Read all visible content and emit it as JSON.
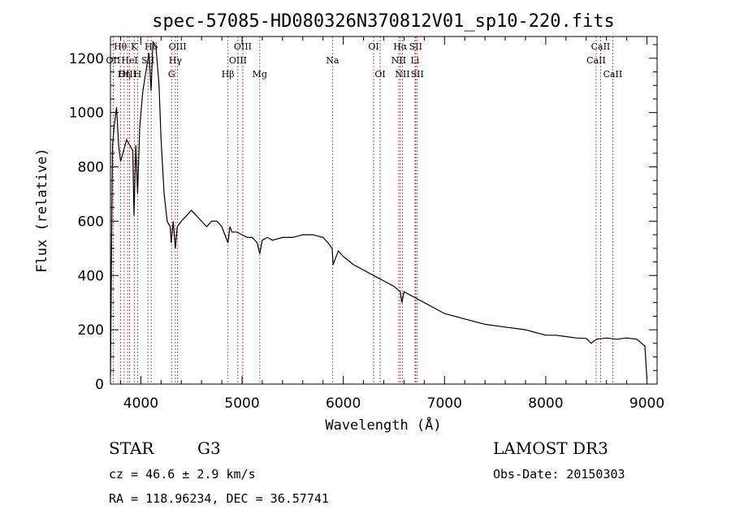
{
  "chart_data": {
    "type": "line",
    "title": "spec-57085-HD080326N370812V01_sp10-220.fits",
    "xlabel": "Wavelength (Å)",
    "ylabel": "Flux (relative)",
    "xlim": [
      3700,
      9100
    ],
    "ylim": [
      0,
      1280
    ],
    "xticks": [
      4000,
      5000,
      6000,
      7000,
      8000,
      9000
    ],
    "yticks": [
      0,
      200,
      400,
      600,
      800,
      1000,
      1200
    ],
    "series": [
      {
        "name": "spectrum",
        "x": [
          3700,
          3720,
          3740,
          3760,
          3780,
          3800,
          3830,
          3860,
          3890,
          3920,
          3933,
          3950,
          3968,
          3990,
          4020,
          4050,
          4080,
          4101,
          4120,
          4150,
          4180,
          4200,
          4230,
          4260,
          4290,
          4300,
          4320,
          4340,
          4360,
          4400,
          4450,
          4500,
          4550,
          4600,
          4650,
          4700,
          4750,
          4800,
          4861,
          4880,
          4900,
          4950,
          5000,
          5050,
          5100,
          5150,
          5175,
          5200,
          5250,
          5300,
          5400,
          5500,
          5600,
          5700,
          5800,
          5850,
          5890,
          5900,
          5950,
          6000,
          6100,
          6200,
          6300,
          6400,
          6500,
          6563,
          6580,
          6600,
          6700,
          6800,
          6900,
          7000,
          7200,
          7400,
          7600,
          7800,
          7900,
          8000,
          8100,
          8200,
          8300,
          8400,
          8450,
          8500,
          8600,
          8700,
          8800,
          8900,
          8980,
          9000
        ],
        "y": [
          30,
          880,
          960,
          1020,
          880,
          820,
          860,
          900,
          880,
          860,
          620,
          880,
          700,
          950,
          1080,
          1150,
          1220,
          1080,
          1260,
          1240,
          1100,
          900,
          700,
          600,
          580,
          520,
          600,
          500,
          580,
          600,
          620,
          640,
          620,
          600,
          580,
          600,
          600,
          580,
          520,
          580,
          560,
          560,
          550,
          540,
          540,
          520,
          480,
          530,
          540,
          530,
          540,
          540,
          550,
          550,
          540,
          520,
          500,
          440,
          490,
          470,
          440,
          420,
          400,
          380,
          360,
          340,
          300,
          340,
          320,
          300,
          280,
          260,
          240,
          220,
          210,
          200,
          190,
          180,
          180,
          175,
          170,
          168,
          150,
          165,
          170,
          165,
          170,
          165,
          140,
          20
        ]
      }
    ],
    "line_markers": [
      {
        "label": "Hθ",
        "x": 3798,
        "row": 1
      },
      {
        "label": "OII",
        "x": 3727,
        "row": 2
      },
      {
        "label": "OIII",
        "x": 3869,
        "row": 3
      },
      {
        "label": "Hη",
        "x": 3835,
        "row": 3
      },
      {
        "label": "HeI",
        "x": 3889,
        "row": 2
      },
      {
        "label": "K",
        "x": 3934,
        "row": 1
      },
      {
        "label": "SII",
        "x": 4070,
        "row": 2
      },
      {
        "label": "H",
        "x": 3968,
        "row": 3
      },
      {
        "label": "Hδ",
        "x": 4102,
        "row": 1
      },
      {
        "label": "OIII",
        "x": 4363,
        "row": 1
      },
      {
        "label": "Hγ",
        "x": 4341,
        "row": 2
      },
      {
        "label": "G",
        "x": 4304,
        "row": 3
      },
      {
        "label": "OIII",
        "x": 5007,
        "row": 1
      },
      {
        "label": "OIII",
        "x": 4959,
        "row": 2
      },
      {
        "label": "Hβ",
        "x": 4861,
        "row": 3
      },
      {
        "label": "Mg",
        "x": 5175,
        "row": 3
      },
      {
        "label": "Na",
        "x": 5893,
        "row": 2
      },
      {
        "label": "OI",
        "x": 6300,
        "row": 1
      },
      {
        "label": "OI",
        "x": 6364,
        "row": 3
      },
      {
        "label": "Hα",
        "x": 6563,
        "row": 1
      },
      {
        "label": "SII",
        "x": 6716,
        "row": 1
      },
      {
        "label": "NII",
        "x": 6548,
        "row": 2
      },
      {
        "label": "Li",
        "x": 6708,
        "row": 2
      },
      {
        "label": "NII",
        "x": 6584,
        "row": 3
      },
      {
        "label": "SII",
        "x": 6731,
        "row": 3
      },
      {
        "label": "CaII",
        "x": 8542,
        "row": 1
      },
      {
        "label": "CaII",
        "x": 8498,
        "row": 2
      },
      {
        "label": "CaII",
        "x": 8662,
        "row": 3
      }
    ]
  },
  "info": {
    "object_type": "STAR",
    "subclass": "G3",
    "survey": "LAMOST DR3",
    "redshift": "cz = 46.6 ± 2.9 km/s",
    "obs_date": "Obs-Date: 20150303",
    "coords": "RA = 118.96234, DEC =  36.57741"
  },
  "colors": {
    "line": "#000000",
    "marker": "#b22222"
  }
}
